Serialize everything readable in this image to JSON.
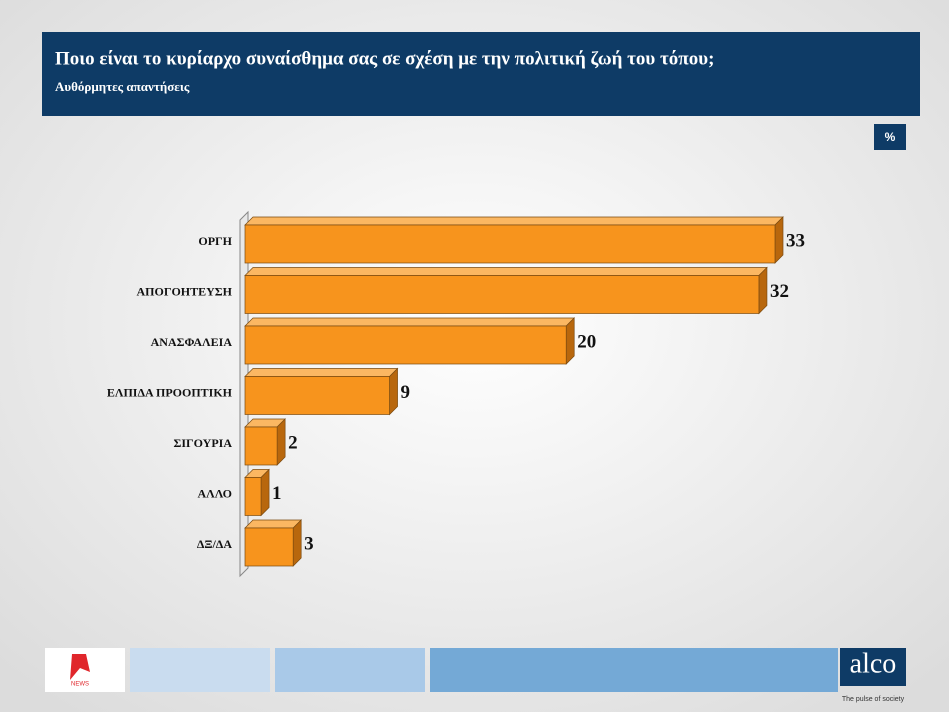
{
  "chart_data": {
    "type": "bar",
    "title": "Ποιο είναι το κυρίαρχο συναίσθημα σας σε σχέση με την πολιτική ζωή του τόπου;",
    "subtitle": "Αυθόρμητες απαντήσεις",
    "unit": "%",
    "categories": [
      "ΟΡΓΗ",
      "ΑΠΟΓΟΗΤΕΥΣΗ",
      "ΑΝΑΣΦΑΛΕΙΑ",
      "ΕΛΠΙΔΑ ΠΡΟΟΠΤΙΚΗ",
      "ΣΙΓΟΥΡΙΑ",
      "ΑΛΛΟ",
      "ΔΞ/ΔΑ"
    ],
    "values": [
      33,
      32,
      20,
      9,
      2,
      1,
      3
    ],
    "color": "#f7941d",
    "brand": "alco",
    "tagline": "The pulse of society",
    "logo_text": "NEWS"
  }
}
